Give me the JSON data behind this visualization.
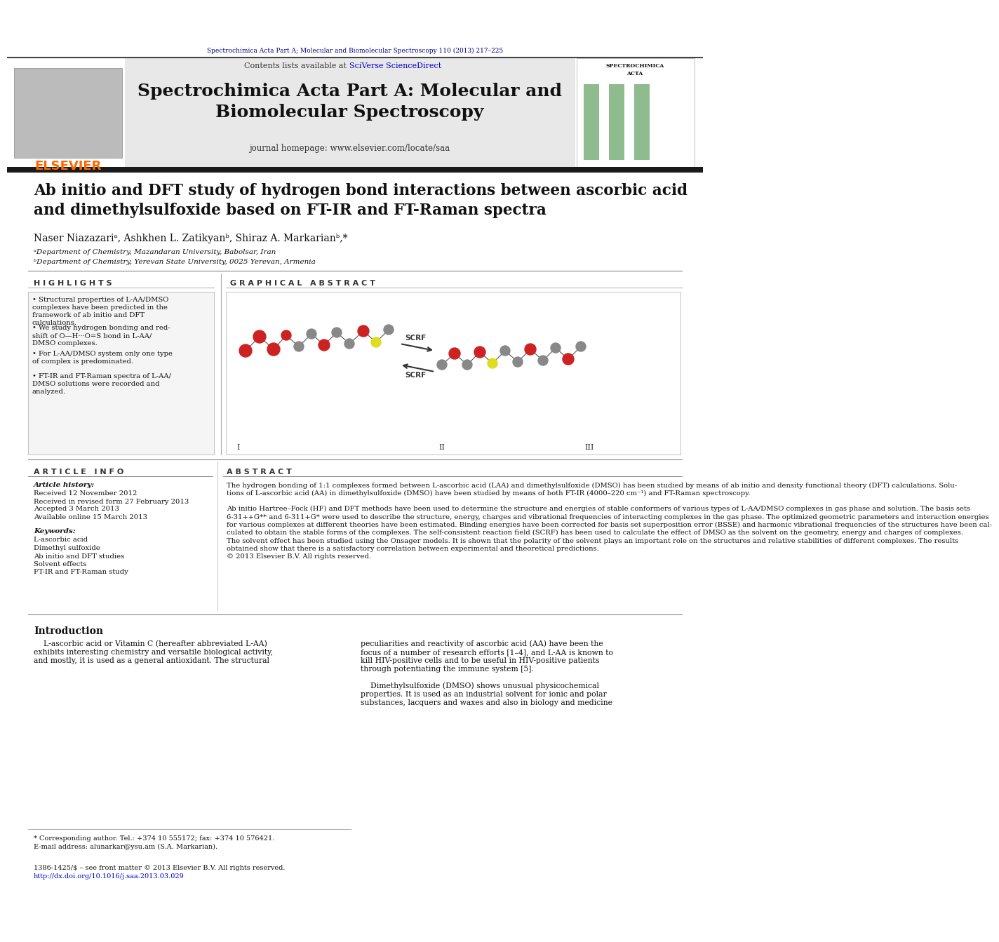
{
  "page_bg": "#ffffff",
  "top_journal_text": "Spectrochimica Acta Part A; Molecular and Biomolecular Spectroscopy 110 (2013) 217–225",
  "top_journal_color": "#00008B",
  "journal_title": "Spectrochimica Acta Part A: Molecular and\nBiomolecular Spectroscopy",
  "journal_homepage": "journal homepage: www.elsevier.com/locate/saa",
  "contents_text": "Contents lists available at ",
  "sciverse_text": "SciVerse ScienceDirect",
  "sciverse_color": "#0000CC",
  "paper_title": "Ab initio and DFT study of hydrogen bond interactions between ascorbic acid\nand dimethylsulfoxide based on FT-IR and FT-Raman spectra",
  "authors": "Naser Niazazariᵃ, Ashkhen L. Zatikyanᵇ, Shiraz A. Markarianᵇ,*",
  "affil_a": "ᵃDepartment of Chemistry, Mazandaran University, Babolsar, Iran",
  "affil_b": "ᵇDepartment of Chemistry, Yerevan State University, 0025 Yerevan, Armenia",
  "highlights_title": "H I G H L I G H T S",
  "graphical_abstract_title": "G R A P H I C A L   A B S T R A C T",
  "highlights": [
    "Structural properties of L-AA/DMSO\ncomplexes have been predicted in the\nframework of ab initio and DFT\ncalculations.",
    "We study hydrogen bonding and red-\nshift of O—H···O=S bond in L-AA/\nDMSO complexes.",
    "For L-AA/DMSO system only one type\nof complex is predominated.",
    "FT-IR and FT-Raman spectra of L-AA/\nDMSO solutions were recorded and\nanalyzed."
  ],
  "article_info_title": "A R T I C L E   I N F O",
  "article_history": "Article history:",
  "received": "Received 12 November 2012",
  "received_revised": "Received in revised form 27 February 2013",
  "accepted": "Accepted 3 March 2013",
  "available": "Available online 15 March 2013",
  "keywords_title": "Keywords:",
  "keywords": [
    "L-ascorbic acid",
    "Dimethyl sulfoxide",
    "Ab initio and DFT studies",
    "Solvent effects",
    "FT-IR and FT-Raman study"
  ],
  "abstract_title": "A B S T R A C T",
  "abstract_lines": [
    "The hydrogen bonding of 1:1 complexes formed between L-ascorbic acid (LAA) and dimethylsulfoxide (DMSO) has been studied by means of ab initio and density functional theory (DFT) calculations. Solu-",
    "tions of L-ascorbic acid (AA) in dimethylsulfoxide (DMSO) have been studied by means of both FT-IR (4000–220 cm⁻¹) and FT-Raman spectroscopy.",
    "",
    "Ab initio Hartree–Fock (HF) and DFT methods have been used to determine the structure and energies of stable conformers of various types of L-AA/DMSO complexes in gas phase and solution. The basis sets",
    "6-31++G** and 6-311+G* were used to describe the structure, energy, charges and vibrational frequencies of interacting complexes in the gas phase. The optimized geometric parameters and interaction energies",
    "for various complexes at different theories have been estimated. Binding energies have been corrected for basis set superposition error (BSSE) and harmonic vibrational frequencies of the structures have been cal-",
    "culated to obtain the stable forms of the complexes. The self-consistent reaction field (SCRF) has been used to calculate the effect of DMSO as the solvent on the geometry, energy and charges of complexes.",
    "The solvent effect has been studied using the Onsager models. It is shown that the polarity of the solvent plays an important role on the structures and relative stabilities of different complexes. The results",
    "obtained show that there is a satisfactory correlation between experimental and theoretical predictions.",
    "© 2013 Elsevier B.V. All rights reserved."
  ],
  "intro_title": "Introduction",
  "intro_col1_lines": [
    "    L-ascorbic acid or Vitamin C (hereafter abbreviated L-AA)",
    "exhibits interesting chemistry and versatile biological activity,",
    "and mostly, it is used as a general antioxidant. The structural"
  ],
  "intro_col2_lines": [
    "peculiarities and reactivity of ascorbic acid (AA) have been the",
    "focus of a number of research efforts [1–4], and L-AA is known to",
    "kill HIV-positive cells and to be useful in HIV-positive patients",
    "through potentiating the immune system [5].",
    "",
    "    Dimethylsulfoxide (DMSO) shows unusual physicochemical",
    "properties. It is used as an industrial solvent for ionic and polar",
    "substances, lacquers and waxes and also in biology and medicine"
  ],
  "footer_note": "* Corresponding author. Tel.: +374 10 555172; fax: +374 10 576421.",
  "footer_email": "E-mail address: alunarkar@ysu.am (S.A. Markarian).",
  "footer_issn": "1386-1425/$ – see front matter © 2013 Elsevier B.V. All rights reserved.",
  "footer_doi": "http://dx.doi.org/10.1016/j.saa.2013.03.029",
  "elsevier_color": "#FF6600",
  "header_bg": "#E8E8E8",
  "highlight_box_color": "#F5F5F5",
  "dark_bar_color": "#1a1a1a"
}
